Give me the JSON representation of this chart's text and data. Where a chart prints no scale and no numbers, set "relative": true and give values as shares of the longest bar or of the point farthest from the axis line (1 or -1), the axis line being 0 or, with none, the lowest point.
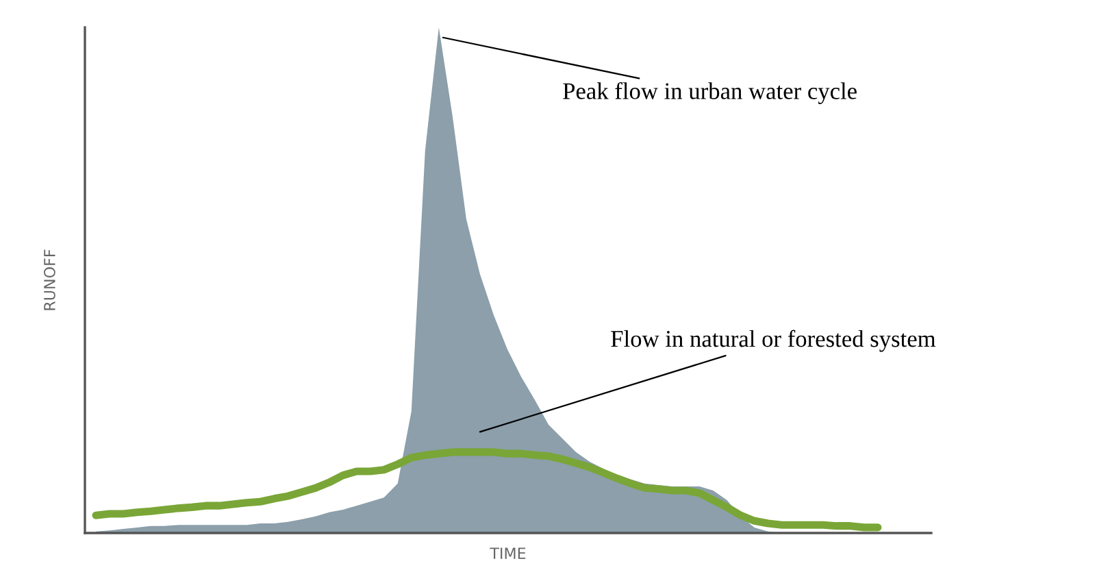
{
  "chart_data": {
    "type": "area",
    "relative": true,
    "xlabel": "TIME",
    "ylabel": "RUNOFF",
    "annotations": [
      "Peak flow in urban water cycle",
      "Flow in natural or forested system"
    ],
    "categories": [
      null,
      null,
      null,
      null,
      null,
      null,
      null,
      null,
      null,
      null,
      null,
      null,
      null,
      null,
      null,
      null,
      null,
      null,
      null,
      null,
      null,
      null,
      null,
      null,
      null,
      null,
      null,
      null,
      null,
      null,
      null,
      null,
      null,
      null,
      null,
      null,
      null,
      null,
      null,
      null,
      null,
      null,
      null,
      null,
      null,
      null,
      null,
      null,
      null,
      null,
      null,
      null,
      null,
      null,
      null,
      null,
      null,
      null
    ],
    "series": [
      {
        "color": "#8c9fab",
        "values": [
          0.003,
          0.005,
          0.008,
          0.011,
          0.014,
          0.014,
          0.016,
          0.016,
          0.016,
          0.016,
          0.016,
          0.016,
          0.019,
          0.019,
          0.022,
          0.027,
          0.033,
          0.041,
          0.046,
          0.054,
          0.062,
          0.07,
          0.098,
          0.241,
          0.756,
          1,
          0.824,
          0.621,
          0.512,
          0.431,
          0.363,
          0.309,
          0.263,
          0.214,
          0.187,
          0.16,
          0.141,
          0.127,
          0.114,
          0.106,
          0.098,
          0.095,
          0.092,
          0.092,
          0.092,
          0.084,
          0.065,
          0.033,
          0.011,
          0.003,
          0,
          0,
          0,
          0,
          0,
          0,
          0,
          0
        ]
      },
      {
        "type": "line",
        "color": "#7aa637",
        "values": [
          0.035,
          0.038,
          0.038,
          0.041,
          0.043,
          0.046,
          0.049,
          0.051,
          0.054,
          0.054,
          0.057,
          0.06,
          0.062,
          0.068,
          0.073,
          0.081,
          0.089,
          0.1,
          0.114,
          0.122,
          0.122,
          0.125,
          0.136,
          0.149,
          0.154,
          0.157,
          0.16,
          0.16,
          0.16,
          0.16,
          0.157,
          0.157,
          0.154,
          0.152,
          0.146,
          0.138,
          0.13,
          0.119,
          0.108,
          0.098,
          0.089,
          0.087,
          0.084,
          0.084,
          0.079,
          0.065,
          0.051,
          0.035,
          0.024,
          0.019,
          0.016,
          0.016,
          0.016,
          0.016,
          0.014,
          0.014,
          0.011,
          0.011
        ]
      }
    ]
  }
}
